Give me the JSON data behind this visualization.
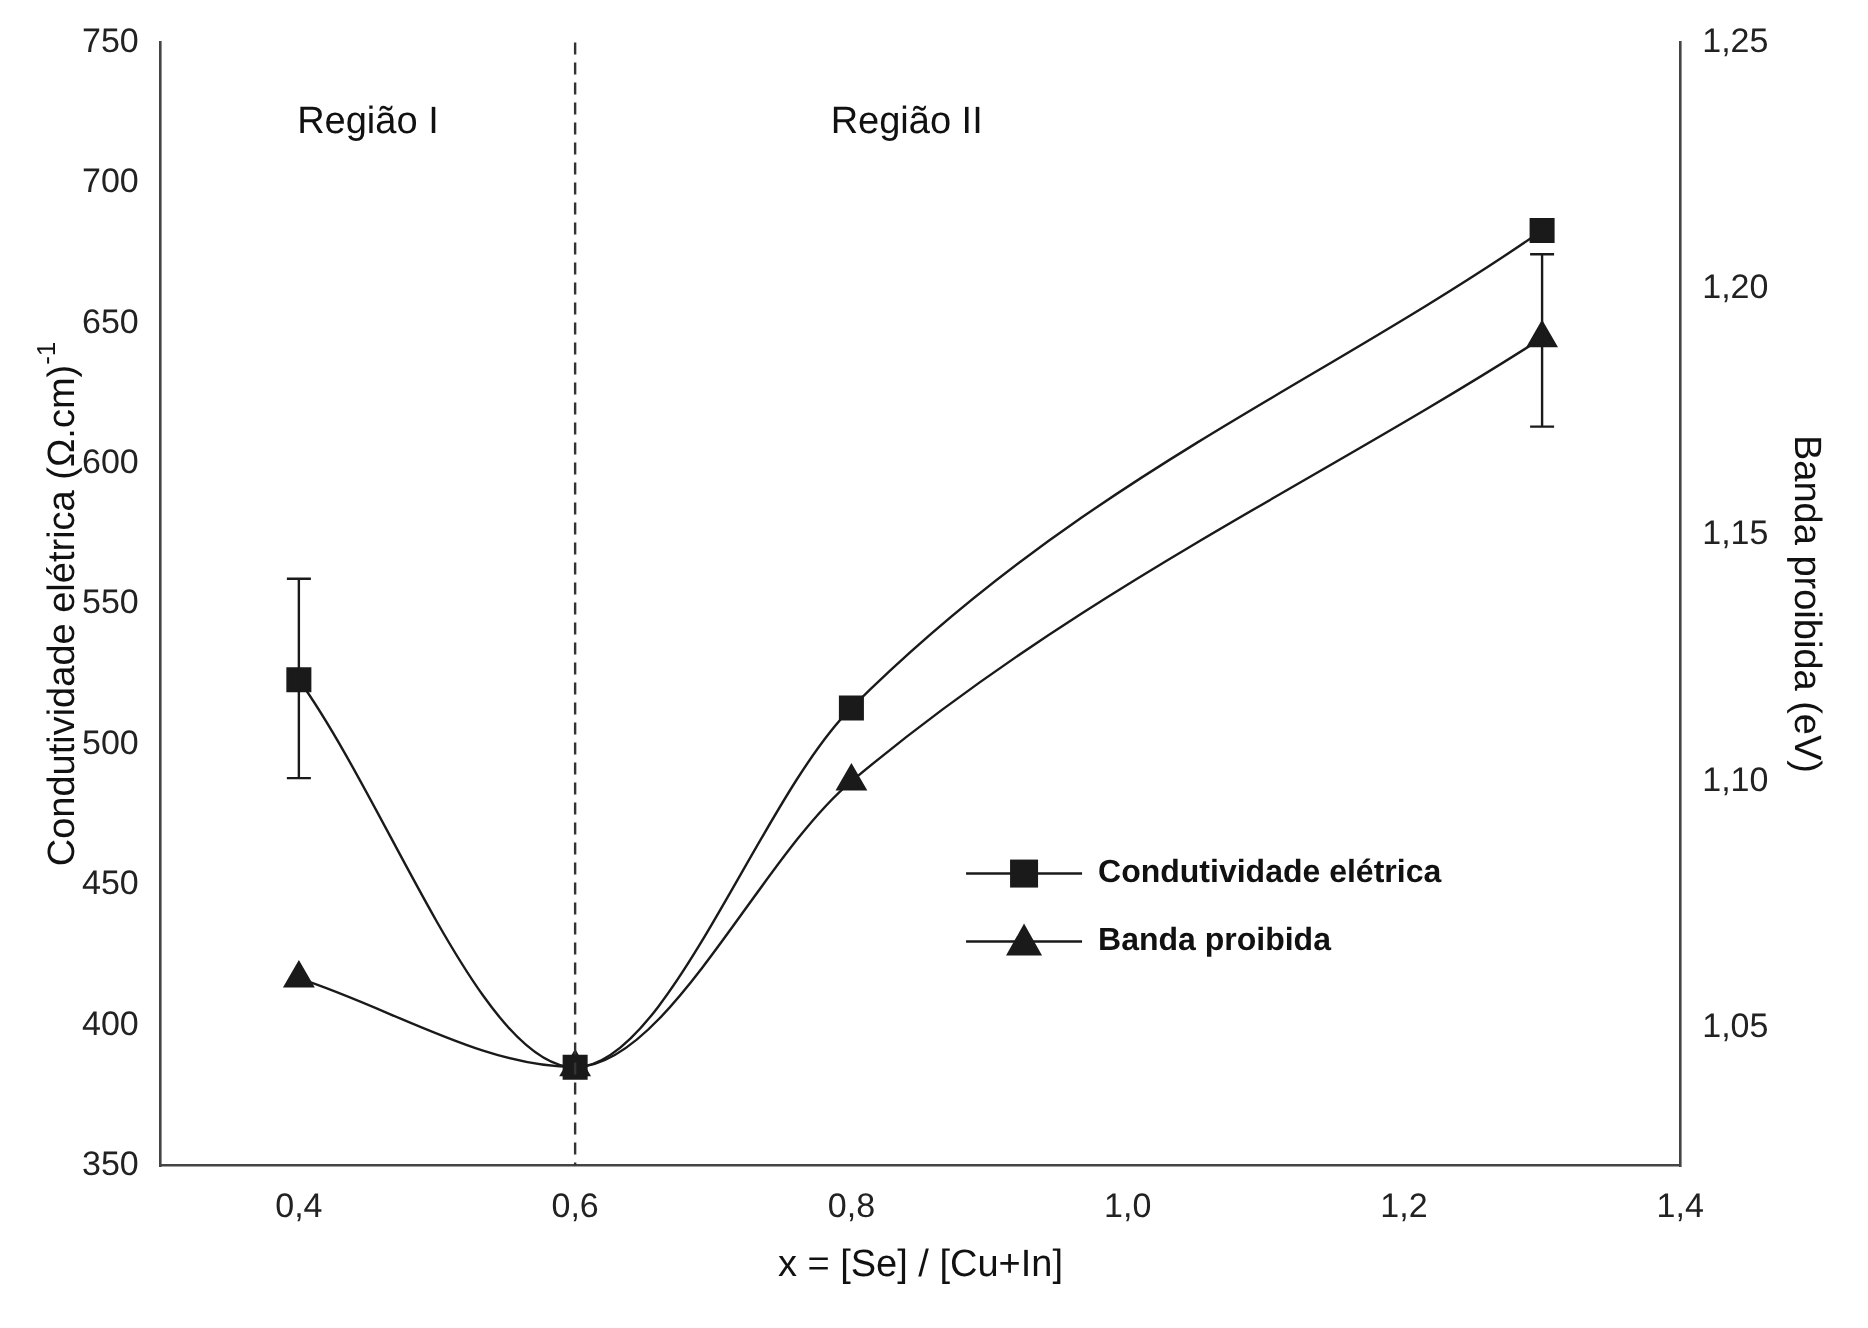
{
  "chart_data": {
    "type": "line",
    "xlabel": "x = [Se] / [Cu+In]",
    "ylabel": "Condutividade elétrica (Ω.cm)$^{-1}$",
    "y2label": "Banda proibida (eV)",
    "xlim": [
      0.3,
      1.4
    ],
    "xticks": [
      {
        "value": 0.4,
        "label": "0,4"
      },
      {
        "value": 0.6,
        "label": "0,6"
      },
      {
        "value": 0.8,
        "label": "0,8"
      },
      {
        "value": 1.0,
        "label": "1,0"
      },
      {
        "value": 1.2,
        "label": "1,2"
      },
      {
        "value": 1.4,
        "label": "1,4"
      }
    ],
    "ylim": [
      350,
      750
    ],
    "yticks": [
      350,
      400,
      450,
      500,
      550,
      600,
      650,
      700,
      750
    ],
    "y2lim": [
      1.022,
      1.25
    ],
    "y2ticks": [
      {
        "value": 1.05,
        "label": "1,05"
      },
      {
        "value": 1.1,
        "label": "1,10"
      },
      {
        "value": 1.15,
        "label": "1,15"
      },
      {
        "value": 1.2,
        "label": "1,20"
      },
      {
        "value": 1.25,
        "label": "1,25"
      }
    ],
    "series": [
      {
        "name": "Condutividade elétrica",
        "color": "#1a1a1a",
        "marker": "square",
        "x": [
          0.4,
          0.6,
          0.8,
          1.3
        ],
        "values": [
          523,
          385,
          513,
          683
        ],
        "errors": [
          [
            488,
            559
          ],
          null,
          null,
          null
        ]
      },
      {
        "name": "Banda proibida",
        "color": "#1a1a1a",
        "marker": "triangle",
        "axis": "y2",
        "x": [
          0.4,
          0.6,
          0.8,
          1.3
        ],
        "values": [
          1.06,
          1.042,
          1.1,
          1.19
        ],
        "errors": [
          null,
          null,
          null,
          [
            1.172,
            1.207
          ]
        ]
      }
    ],
    "ref_lines": [
      {
        "axis": "x",
        "value": 0.6,
        "line_style": "dashed",
        "color": "#333333"
      }
    ],
    "annotations": [
      "Região I",
      "Região II"
    ],
    "legend": "bottom right",
    "grid": false
  }
}
